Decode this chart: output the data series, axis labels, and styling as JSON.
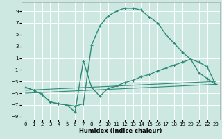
{
  "xlabel": "Humidex (Indice chaleur)",
  "xlim": [
    -0.5,
    23.5
  ],
  "ylim": [
    -9.5,
    10.5
  ],
  "yticks": [
    -9,
    -7,
    -5,
    -3,
    -1,
    1,
    3,
    5,
    7,
    9
  ],
  "xticks": [
    0,
    1,
    2,
    3,
    4,
    5,
    6,
    7,
    8,
    9,
    10,
    11,
    12,
    13,
    14,
    15,
    16,
    17,
    18,
    19,
    20,
    21,
    22,
    23
  ],
  "bg_color": "#cde8e0",
  "line_color": "#2e8b7a",
  "grid_color": "#ffffff",
  "curve_main_x": [
    0,
    1,
    2,
    3,
    4,
    5,
    6,
    7,
    8,
    9,
    10,
    11,
    12,
    13,
    14,
    15,
    16,
    17,
    18,
    19,
    20,
    21,
    22,
    23
  ],
  "curve_main_y": [
    -4.0,
    -4.5,
    -5.2,
    -6.5,
    -6.8,
    -7.0,
    -7.2,
    -6.8,
    3.2,
    6.5,
    8.2,
    9.0,
    9.5,
    9.5,
    9.2,
    8.0,
    7.0,
    5.0,
    3.5,
    2.0,
    0.8,
    -1.5,
    -2.5,
    -3.5
  ],
  "curve_lower_x": [
    0,
    1,
    2,
    3,
    4,
    5,
    6,
    7,
    8,
    9,
    10,
    11,
    12,
    13,
    14,
    15,
    16,
    17,
    18,
    19,
    20,
    21,
    22,
    23
  ],
  "curve_lower_y": [
    -4.0,
    -4.5,
    -5.2,
    -6.5,
    -6.8,
    -7.0,
    -8.2,
    0.5,
    -4.0,
    -5.5,
    -4.2,
    -3.8,
    -3.2,
    -2.8,
    -2.2,
    -1.8,
    -1.2,
    -0.7,
    -0.2,
    0.3,
    0.8,
    0.3,
    -0.5,
    -3.5
  ],
  "line1_x": [
    0,
    23
  ],
  "line1_y": [
    -4.5,
    -3.0
  ],
  "line2_x": [
    0,
    23
  ],
  "line2_y": [
    -5.0,
    -3.5
  ],
  "lw_curve": 1.0,
  "lw_line": 0.8,
  "marker": "+",
  "markersize": 3,
  "xlabel_fontsize": 6.0,
  "tick_fontsize": 5.0
}
